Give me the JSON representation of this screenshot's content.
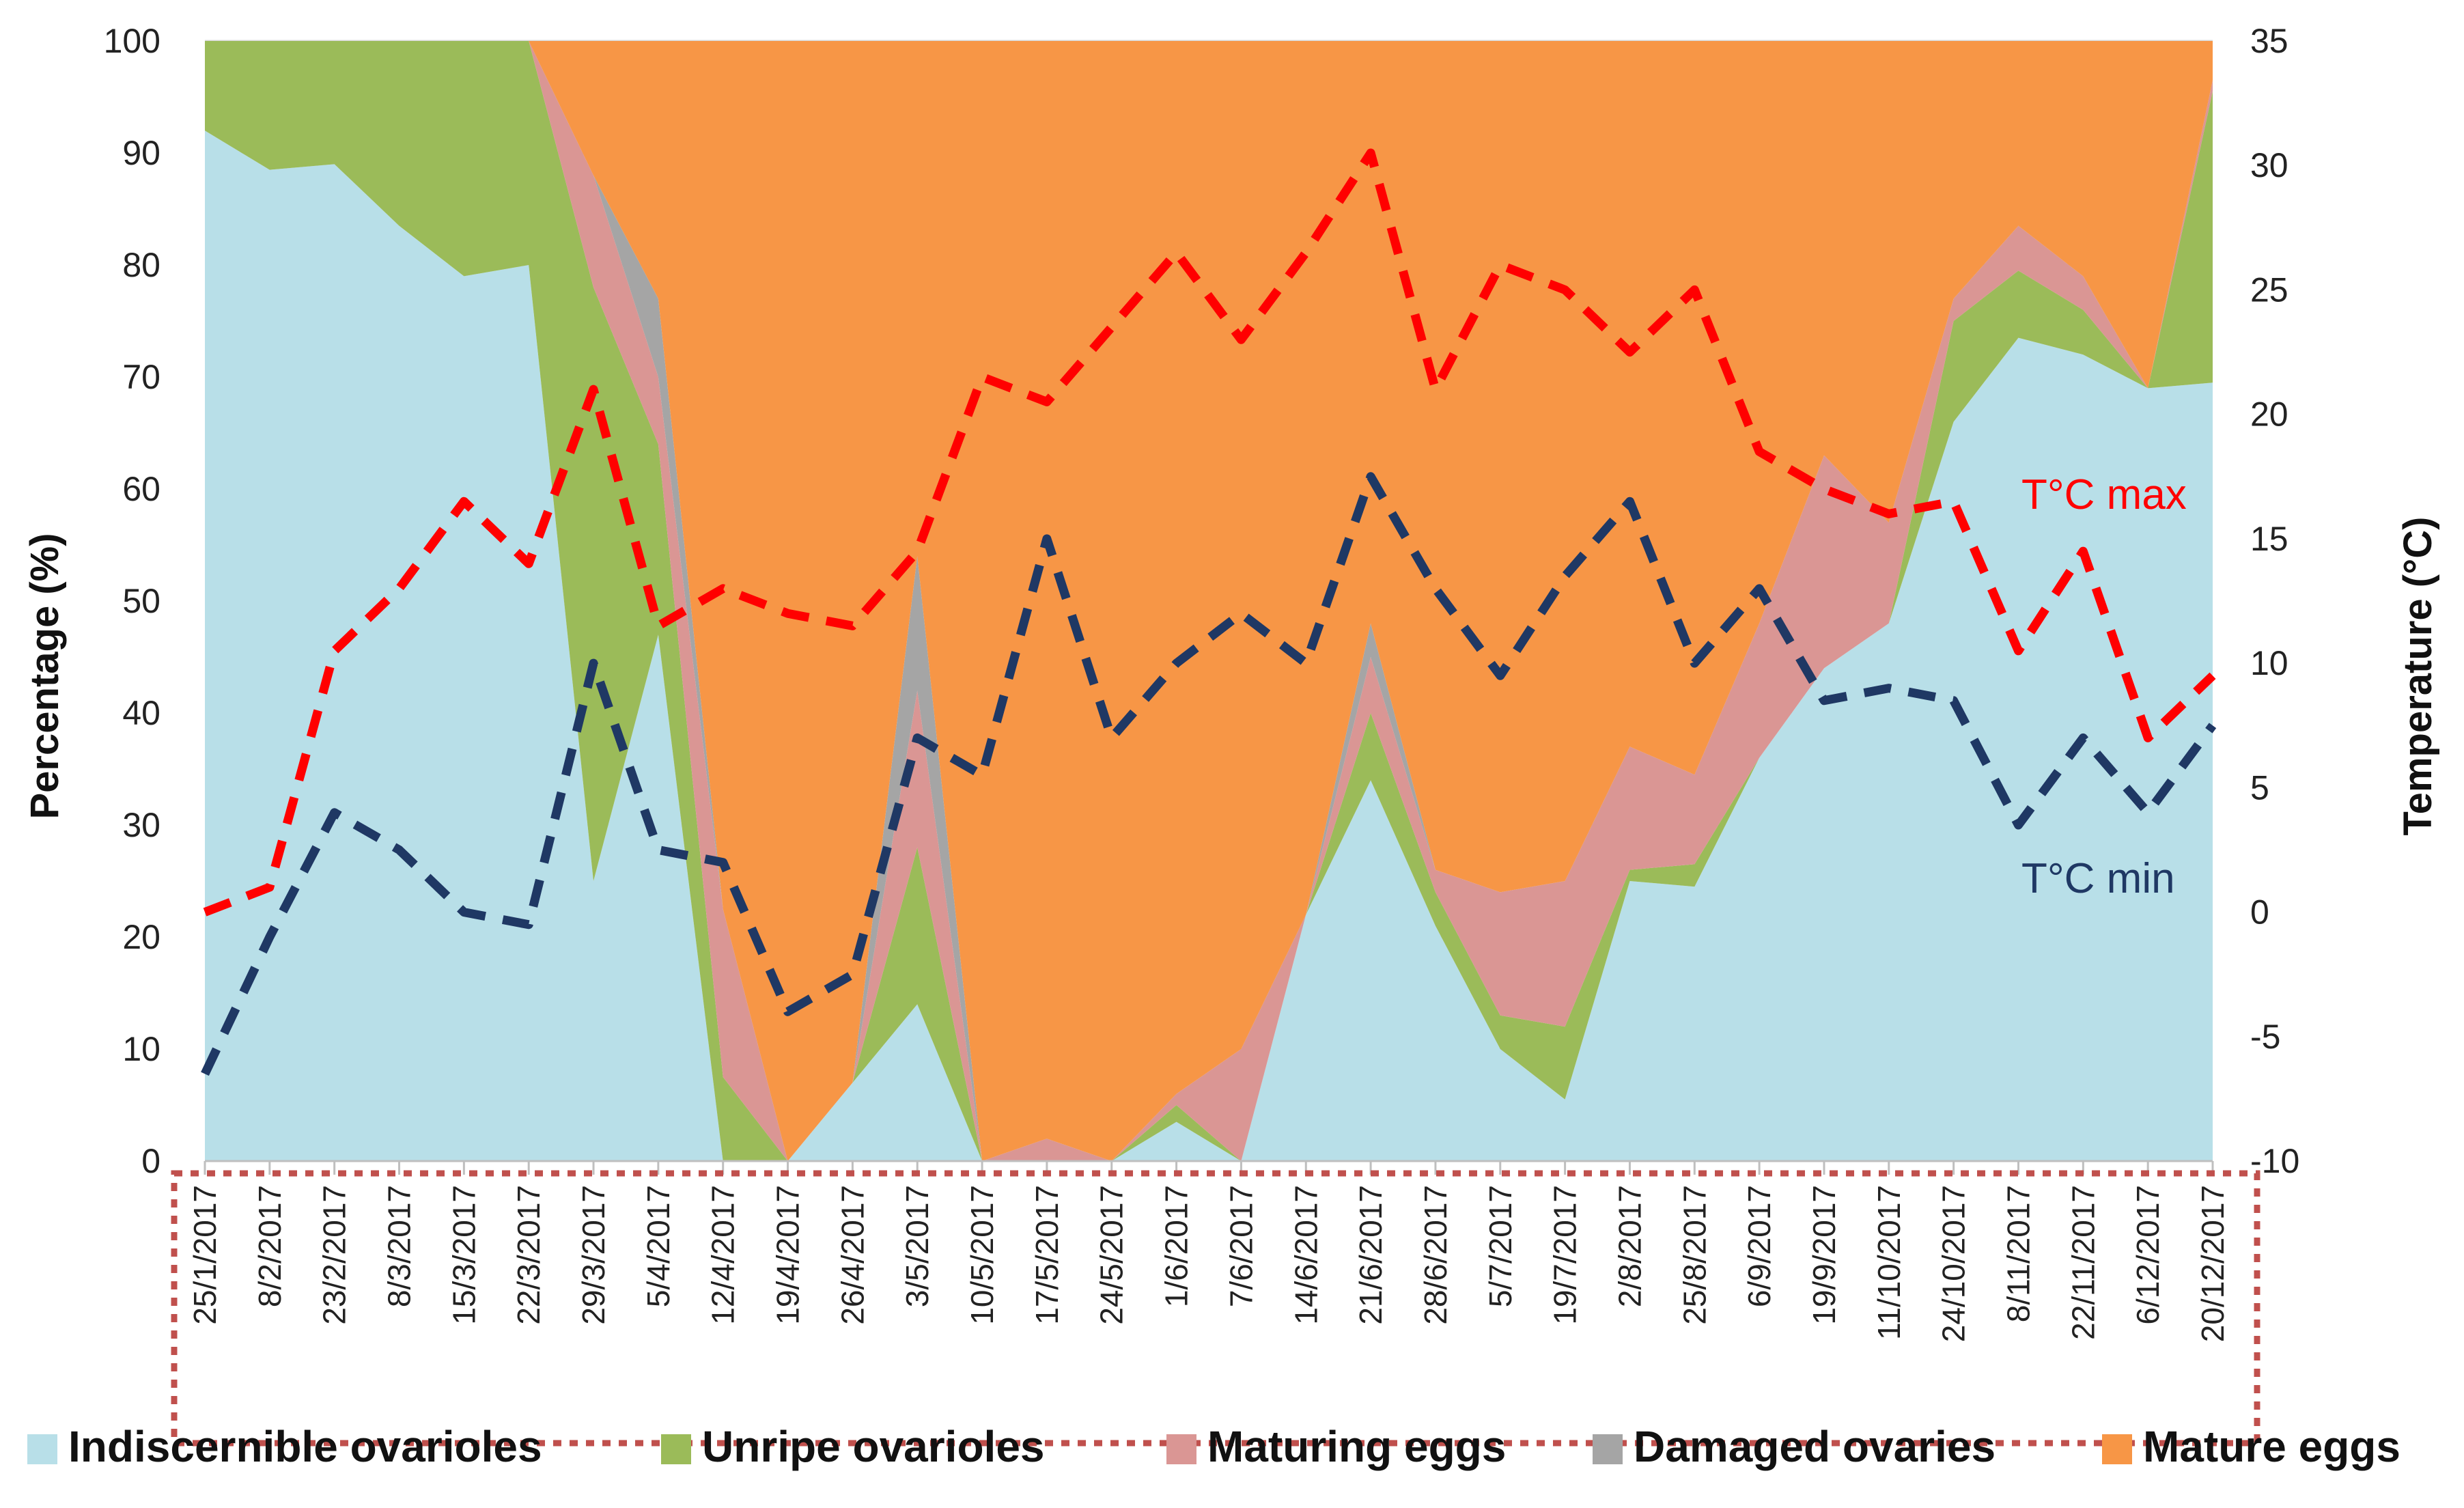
{
  "chart_data": {
    "type": "area",
    "title": "",
    "xlabel": "",
    "ylabel": "Percentage (%)",
    "y2label": "Temperature (°C)",
    "ylim": [
      0,
      100
    ],
    "y2lim": [
      -10,
      35
    ],
    "yticks": [
      "0",
      "10",
      "20",
      "30",
      "40",
      "50",
      "60",
      "70",
      "80",
      "90",
      "100"
    ],
    "y2ticks": [
      "-10",
      "-5",
      "0",
      "5",
      "10",
      "15",
      "20",
      "25",
      "30",
      "35"
    ],
    "categories": [
      "25/1/2017",
      "8/2/2017",
      "23/2/2017",
      "8/3/2017",
      "15/3/2017",
      "22/3/2017",
      "29/3/2017",
      "5/4/2017",
      "12/4/2017",
      "19/4/2017",
      "26/4/2017",
      "3/5/2017",
      "10/5/2017",
      "17/5/2017",
      "24/5/2017",
      "1/6/2017",
      "7/6/2017",
      "14/6/2017",
      "21/6/2017",
      "28/6/2017",
      "5/7/2017",
      "19/7/2017",
      "2/8/2017",
      "25/8/2017",
      "6/9/2017",
      "19/9/2017",
      "11/10/2017",
      "24/10/2017",
      "8/11/2017",
      "22/11/2017",
      "6/12/2017",
      "20/12/2017"
    ],
    "stack_series": [
      {
        "name": "Indiscernible ovarioles",
        "color": "#b8dfe8",
        "values": [
          92,
          88.5,
          89,
          83.5,
          79,
          80,
          25,
          47,
          0,
          0,
          7,
          14,
          0,
          0,
          0,
          3.5,
          0,
          22,
          34,
          21,
          10,
          5.5,
          25,
          24.5,
          36,
          44,
          48,
          66,
          73.5,
          72,
          69,
          69.5
        ]
      },
      {
        "name": "Unripe ovarioles",
        "color": "#9bbb59",
        "values": [
          8,
          11.5,
          11,
          16.5,
          21,
          20,
          53,
          17,
          7.5,
          0,
          0,
          14,
          0,
          0,
          0,
          1.5,
          0,
          0,
          6,
          3,
          3,
          6.5,
          1,
          2,
          0,
          0,
          0,
          9,
          6,
          4,
          0,
          26
        ]
      },
      {
        "name": "Maturing eggs",
        "color": "#da9694",
        "values": [
          0,
          0,
          0,
          0,
          0,
          0,
          10,
          6,
          15,
          0,
          0,
          14,
          0,
          2,
          0,
          1,
          10,
          0,
          5,
          2,
          11,
          13,
          11,
          8,
          12,
          19,
          9,
          2,
          4,
          3,
          0,
          1
        ]
      },
      {
        "name": "Damaged ovaries",
        "color": "#a5a5a5",
        "values": [
          0,
          0,
          0,
          0,
          0,
          0,
          0,
          7,
          0,
          0,
          0,
          12,
          0,
          0,
          0,
          0,
          0,
          0,
          3,
          0,
          0,
          0,
          0,
          0,
          0,
          0,
          0,
          0,
          0,
          0,
          0,
          0
        ]
      },
      {
        "name": "Mature eggs",
        "color": "#f79646",
        "values": [
          0,
          0,
          0,
          0,
          0,
          0,
          12,
          23,
          77.5,
          100,
          93,
          46,
          100,
          98,
          100,
          94,
          90,
          78,
          52,
          74,
          76,
          75,
          63,
          65.5,
          52,
          37,
          43,
          23,
          16.5,
          21,
          31,
          3.5
        ]
      }
    ],
    "line_series": [
      {
        "name": "T°C max",
        "color": "#ff0000",
        "axis": "right",
        "values": [
          0,
          1,
          10.5,
          13,
          16.5,
          14,
          21,
          11.5,
          13,
          12,
          11.5,
          14.5,
          21.5,
          20.5,
          23.5,
          26.5,
          23,
          26.5,
          30.5,
          21,
          26,
          25,
          22.5,
          25,
          18.5,
          17,
          16,
          16.5,
          10.5,
          14.5,
          7,
          9.5
        ]
      },
      {
        "name": "T°C min",
        "color": "#1f3864",
        "axis": "right",
        "values": [
          -6.5,
          -1,
          4,
          2.5,
          0,
          -0.5,
          10,
          2.5,
          2,
          -4,
          -2.5,
          7,
          5.5,
          15,
          7,
          10,
          12,
          10,
          17.5,
          13,
          9.5,
          13.5,
          16.5,
          10,
          13,
          8.5,
          9,
          8.5,
          3.5,
          7,
          4,
          7.5
        ]
      }
    ],
    "annotations": [
      "T°C max",
      "T°C min"
    ],
    "legend": [
      "Indiscernible ovarioles",
      "Unripe ovarioles",
      "Maturing eggs",
      "Damaged ovaries",
      "Mature eggs"
    ],
    "legend_position": "bottom"
  },
  "colors": {
    "axis_box_border": "#c0504d",
    "gridline": "#d9d9d9"
  }
}
